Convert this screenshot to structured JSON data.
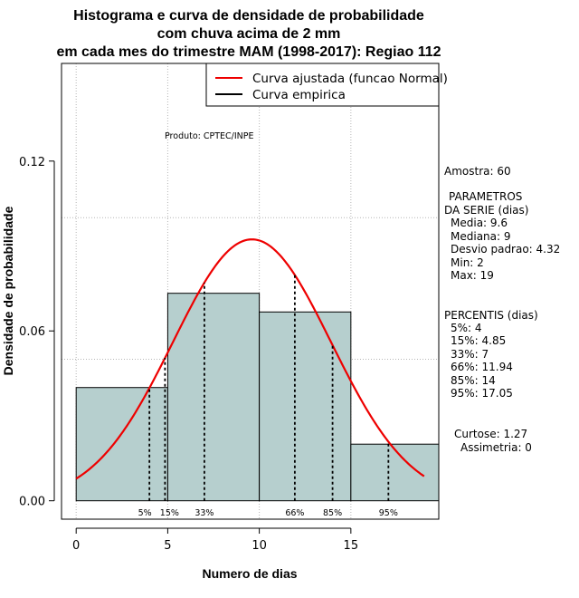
{
  "chart_data": {
    "type": "bar",
    "title_lines": [
      "Histograma e curva de densidade de probabilidade",
      "com chuva acima de 2 mm",
      "em cada mes do trimestre MAM (1998-2017): Regiao 112"
    ],
    "xlabel": "Numero de dias",
    "ylabel": "Densidade de probabilidade",
    "xlim": [
      -0.8,
      19.8
    ],
    "ylim": [
      -0.0065,
      0.1545
    ],
    "x_ticks": [
      0,
      5,
      10,
      15
    ],
    "x_tick_labels": [
      "0",
      "5",
      "10",
      "15"
    ],
    "y_ticks": [
      0.0,
      0.06,
      0.12
    ],
    "y_tick_labels": [
      "0.00",
      "0.06",
      "0.12"
    ],
    "grid": true,
    "grid_x": [
      0,
      5,
      10,
      15
    ],
    "grid_y": [
      0.05,
      0.1
    ],
    "bins": [
      {
        "start": 0,
        "end": 5,
        "density": 0.04
      },
      {
        "start": 5,
        "end": 10,
        "density": 0.0733
      },
      {
        "start": 10,
        "end": 15,
        "density": 0.0667
      },
      {
        "start": 15,
        "end": 20,
        "density": 0.02
      }
    ],
    "normal_curve": {
      "mean": 9.6,
      "sd": 4.32,
      "from": 0,
      "to": 19
    },
    "percentile_lines": [
      {
        "x": 4,
        "label": "5%"
      },
      {
        "x": 4.85,
        "label": "15%"
      },
      {
        "x": 7,
        "label": "33%"
      },
      {
        "x": 11.94,
        "label": "66%"
      },
      {
        "x": 14,
        "label": "85%"
      },
      {
        "x": 17.05,
        "label": "95%"
      }
    ],
    "legend": {
      "position": "top-right",
      "entries": [
        {
          "label": "Curva ajustada (funcao Normal)",
          "color": "#ee0000"
        },
        {
          "label": "Curva empirica",
          "color": "#000000"
        }
      ]
    },
    "annotation": "Produto: CPTEC/INPE",
    "bar_color": "#b6cfce",
    "curve_color": "#ee0000"
  },
  "side_panel": {
    "amostra": "Amostra: 60",
    "param_title_1": "PARAMETROS",
    "param_title_2": "DA SERIE (dias)",
    "params": [
      "Media: 9.6",
      "Mediana: 9",
      "Desvio padrao: 4.32",
      "Min: 2",
      "Max: 19"
    ],
    "percentis_title": "PERCENTIS (dias)",
    "percentis": [
      "5%: 4",
      "15%: 4.85",
      "33%: 7",
      "66%: 11.94",
      "85%: 14",
      "95%: 17.05"
    ],
    "curtose": "Curtose: 1.27",
    "assimetria": "Assimetria: 0"
  }
}
